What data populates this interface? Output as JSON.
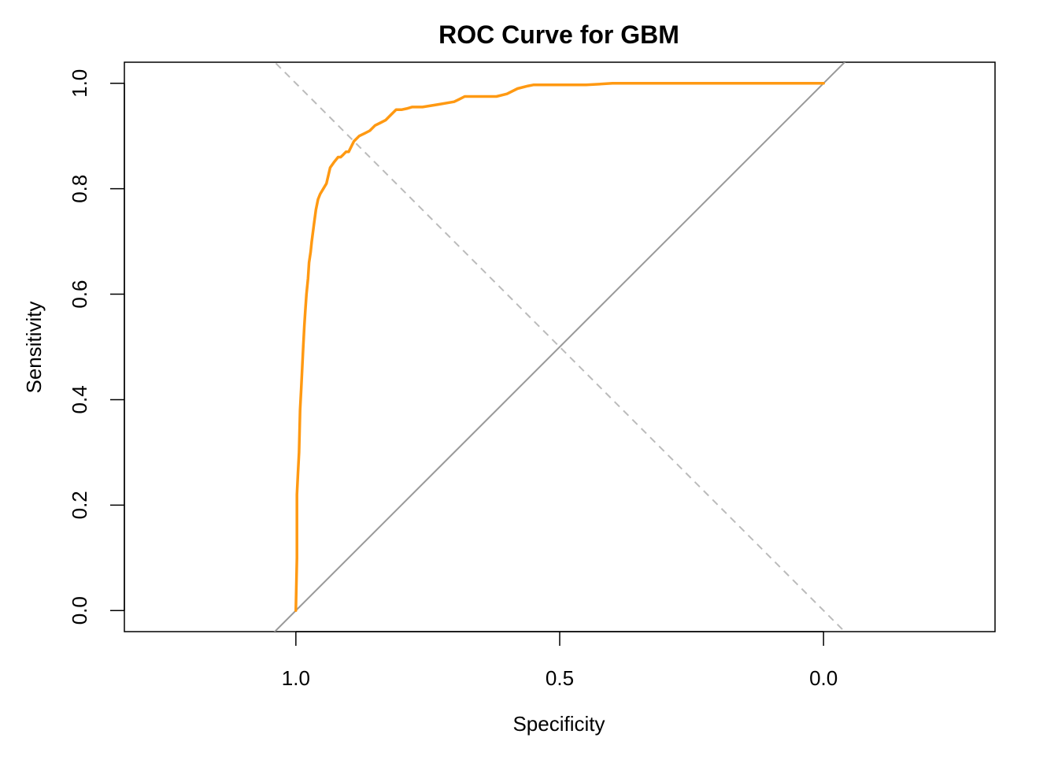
{
  "chart_data": {
    "type": "line",
    "title": "ROC Curve for GBM",
    "xlabel": "Specificity",
    "ylabel": "Sensitivity",
    "xlim": [
      1.325,
      -0.325
    ],
    "ylim": [
      -0.04,
      1.04
    ],
    "x_reversed": true,
    "grid": false,
    "legend": "none",
    "x_ticks": [
      1.0,
      0.5,
      0.0
    ],
    "x_tick_labels": [
      "1.0",
      "0.5",
      "0.0"
    ],
    "y_ticks": [
      0.0,
      0.2,
      0.4,
      0.6,
      0.8,
      1.0
    ],
    "y_tick_labels": [
      "0.0",
      "0.2",
      "0.4",
      "0.6",
      "0.8",
      "1.0"
    ],
    "colors": {
      "roc_line": "#ff9912",
      "chance_line": "#999999",
      "reference_line": "#bbbbbb"
    },
    "series": [
      {
        "specificity": [
          1.0,
          0.998,
          0.998,
          0.996,
          0.994,
          0.992,
          0.99,
          0.988,
          0.986,
          0.984,
          0.982,
          0.98,
          0.977,
          0.975,
          0.972,
          0.97,
          0.966,
          0.962,
          0.958,
          0.954,
          0.948,
          0.942,
          0.935,
          0.928,
          0.92,
          0.915,
          0.91,
          0.905,
          0.9,
          0.89,
          0.88,
          0.87,
          0.86,
          0.85,
          0.84,
          0.83,
          0.82,
          0.81,
          0.8,
          0.79,
          0.78,
          0.77,
          0.76,
          0.73,
          0.7,
          0.69,
          0.68,
          0.65,
          0.62,
          0.6,
          0.58,
          0.56,
          0.55,
          0.54,
          0.5,
          0.45,
          0.4,
          0.3,
          0.2,
          0.1,
          0.0
        ],
        "sensitivity": [
          0.0,
          0.1,
          0.22,
          0.26,
          0.3,
          0.38,
          0.42,
          0.46,
          0.5,
          0.54,
          0.57,
          0.6,
          0.63,
          0.66,
          0.68,
          0.7,
          0.73,
          0.76,
          0.78,
          0.79,
          0.8,
          0.81,
          0.84,
          0.85,
          0.86,
          0.86,
          0.865,
          0.87,
          0.87,
          0.89,
          0.9,
          0.905,
          0.91,
          0.92,
          0.925,
          0.93,
          0.94,
          0.95,
          0.95,
          0.952,
          0.955,
          0.955,
          0.955,
          0.96,
          0.965,
          0.97,
          0.975,
          0.975,
          0.975,
          0.98,
          0.99,
          0.995,
          0.997,
          0.997,
          0.997,
          0.997,
          1.0,
          1.0,
          1.0,
          1.0,
          1.0
        ]
      }
    ]
  }
}
